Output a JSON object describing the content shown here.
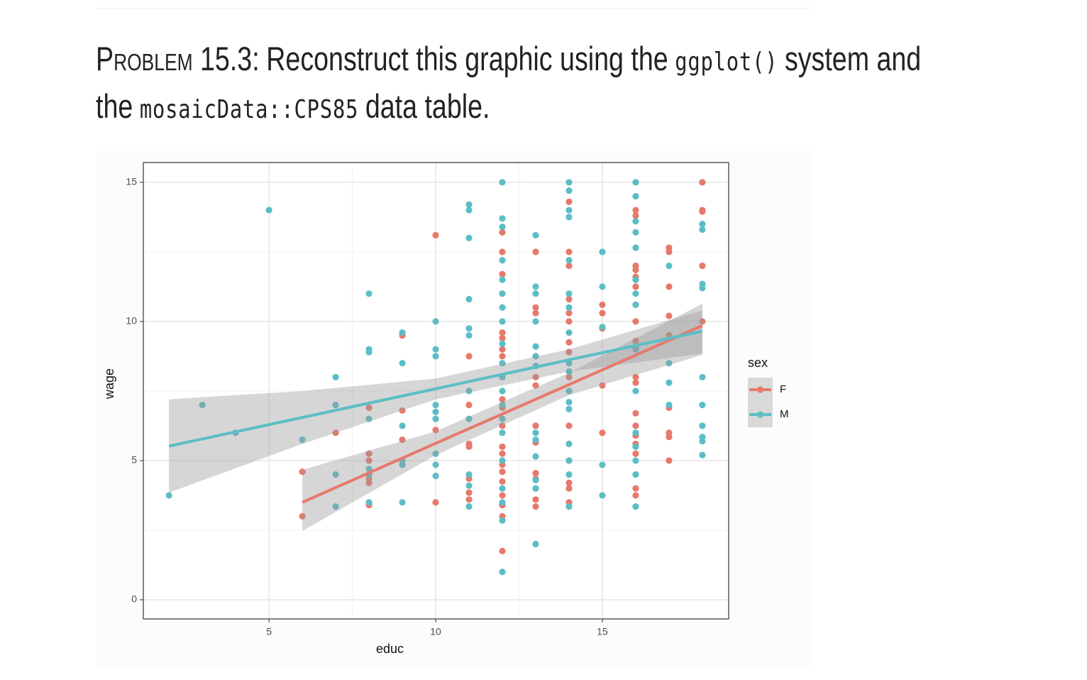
{
  "header": {
    "lines": [
      [
        {
          "small_caps": "Problem 15.3:"
        },
        {
          "text": "Reconstruct this graphic using the"
        },
        {
          "code": "ggplot()"
        },
        {
          "text": "system and"
        }
      ],
      [
        {
          "text": "the"
        },
        {
          "code": "mosaicData::CPS85"
        },
        {
          "text": "data table."
        }
      ]
    ]
  },
  "chart_data": {
    "type": "scatter",
    "x_label": "educ",
    "y_label": "wage",
    "legend_title": "sex",
    "xlim": [
      1.23,
      18.79
    ],
    "ylim": [
      -0.69,
      15.71
    ],
    "xticks": [
      5,
      10,
      15
    ],
    "yticks": [
      0,
      5,
      10,
      15
    ],
    "grid": true,
    "legend": "right",
    "series": [
      {
        "name": "F",
        "color": "#E7796C",
        "x": [
          6,
          6,
          7,
          8,
          8,
          8,
          8,
          8,
          8,
          9,
          9,
          9,
          10,
          10,
          10,
          11,
          11,
          11,
          11,
          11,
          11,
          11,
          12,
          12,
          12,
          12,
          12,
          12,
          12,
          12,
          12,
          12,
          12,
          12,
          12,
          12,
          12,
          12,
          12,
          12,
          12,
          13,
          13,
          13,
          13,
          13,
          13,
          13,
          13,
          13,
          13,
          13,
          14,
          14,
          14,
          14,
          14,
          14,
          14,
          14,
          14,
          14,
          14,
          14,
          14,
          14,
          15,
          15,
          15,
          15,
          15,
          16,
          16,
          16,
          16,
          16,
          16,
          16,
          16,
          16,
          16,
          16,
          16,
          16,
          16,
          16,
          16,
          16,
          16,
          16,
          17,
          17,
          17,
          17,
          17,
          17,
          17,
          17,
          17,
          18,
          18,
          18,
          18,
          18
        ],
        "values": [
          4.6,
          3,
          6,
          6.9,
          5.25,
          5,
          4.35,
          4.2,
          3.4,
          9.5,
          6.8,
          5.75,
          13.1,
          6.1,
          3.5,
          8.75,
          7,
          5.6,
          5.5,
          4.35,
          3.85,
          3.6,
          13.2,
          12.5,
          11.7,
          9.6,
          9.4,
          9,
          8.75,
          7.2,
          6.9,
          6.25,
          5.5,
          5.25,
          4.85,
          4.6,
          4.25,
          3.75,
          3.4,
          3,
          1.75,
          12.5,
          10.5,
          10.3,
          8,
          7.7,
          6.25,
          5.65,
          4.55,
          4.35,
          3.6,
          3.35,
          14.3,
          12.5,
          12,
          10.8,
          10.3,
          10,
          9.25,
          8.9,
          8,
          6.25,
          5,
          4.2,
          4,
          3.5,
          10.6,
          10.3,
          9.75,
          7.7,
          6,
          14,
          13.8,
          12,
          11.85,
          11.6,
          11.25,
          10.6,
          10,
          9.3,
          9.05,
          8,
          7.8,
          6.7,
          6.25,
          5.9,
          5.6,
          5.25,
          4,
          3.75,
          12.65,
          12.5,
          11.25,
          10.2,
          9.5,
          6.9,
          6,
          5.85,
          5,
          15,
          14,
          13.95,
          12,
          10
        ],
        "fit_x": [
          6,
          10,
          14,
          18
        ],
        "fit": [
          3.5,
          5.62,
          7.73,
          9.85
        ],
        "fit_lower": [
          2.47,
          5.2,
          7.35,
          8.8
        ],
        "fit_upper": [
          4.67,
          6.05,
          8.15,
          10.64
        ]
      },
      {
        "name": "M",
        "color": "#5BBEC6",
        "x": [
          2,
          3,
          4,
          5,
          6,
          7,
          7,
          7,
          7,
          8,
          8,
          8,
          8,
          8,
          8,
          8,
          9,
          9,
          9,
          9,
          9,
          9,
          10,
          10,
          10,
          10,
          10,
          10,
          10,
          10,
          10,
          11,
          11,
          11,
          11,
          11,
          11,
          11,
          11,
          11,
          11,
          11,
          12,
          12,
          12,
          12,
          12,
          12,
          12,
          12,
          12,
          12,
          12,
          12,
          12,
          12,
          12,
          12,
          12,
          12,
          12,
          12,
          13,
          13,
          13,
          13,
          13,
          13,
          13,
          13,
          13,
          13,
          13,
          13,
          13,
          14,
          14,
          14,
          14,
          14,
          14,
          14,
          14,
          14,
          14,
          14,
          14,
          14,
          14,
          14,
          14,
          14,
          15,
          15,
          15,
          15,
          15,
          16,
          16,
          16,
          16,
          16,
          16,
          16,
          16,
          16,
          16,
          16,
          16,
          16,
          16,
          16,
          17,
          17,
          17,
          17,
          18,
          18,
          18,
          18,
          18,
          18,
          18,
          18,
          18,
          18
        ],
        "values": [
          3.75,
          7,
          6,
          14,
          5.75,
          8,
          7,
          4.5,
          3.35,
          11,
          9,
          8.9,
          6.5,
          4.7,
          4.5,
          3.5,
          9.6,
          8.5,
          6.25,
          5,
          4.85,
          3.5,
          10,
          9,
          8.75,
          7,
          6.75,
          6.5,
          5.25,
          4.85,
          4.45,
          14.2,
          14,
          13,
          10.8,
          9.75,
          9.5,
          7.5,
          6.5,
          4.5,
          4.1,
          3.35,
          15,
          13.7,
          13.4,
          12.2,
          11.5,
          11,
          10.5,
          10,
          9.2,
          8.5,
          8,
          7.5,
          7,
          6.5,
          6,
          5,
          4,
          3.5,
          2.85,
          1,
          13.1,
          11.25,
          11,
          10,
          9.1,
          8.75,
          8.4,
          6,
          5.75,
          5.15,
          4.3,
          4,
          2,
          15,
          14.7,
          14,
          13.75,
          12.2,
          11,
          10.5,
          9.6,
          8.5,
          8.2,
          7.5,
          7.1,
          6.85,
          5.6,
          5,
          4.5,
          3.35,
          12.5,
          11.25,
          9.8,
          4.85,
          3.75,
          15,
          14.5,
          13.6,
          13.2,
          12.65,
          11.5,
          11,
          10.6,
          9,
          7.5,
          6,
          5.5,
          5,
          4.5,
          3.35,
          12,
          8.5,
          7.8,
          7,
          13.5,
          13.3,
          11.35,
          11.2,
          8,
          7,
          6.25,
          5.85,
          5.7,
          5.2
        ],
        "fit_x": [
          2,
          6,
          10,
          14,
          18
        ],
        "fit": [
          5.52,
          6.55,
          7.58,
          8.62,
          9.65
        ],
        "fit_lower": [
          3.85,
          5.6,
          7.2,
          8.2,
          8.85
        ],
        "fit_upper": [
          7.2,
          7.5,
          7.95,
          9.0,
          10.4
        ]
      }
    ]
  }
}
